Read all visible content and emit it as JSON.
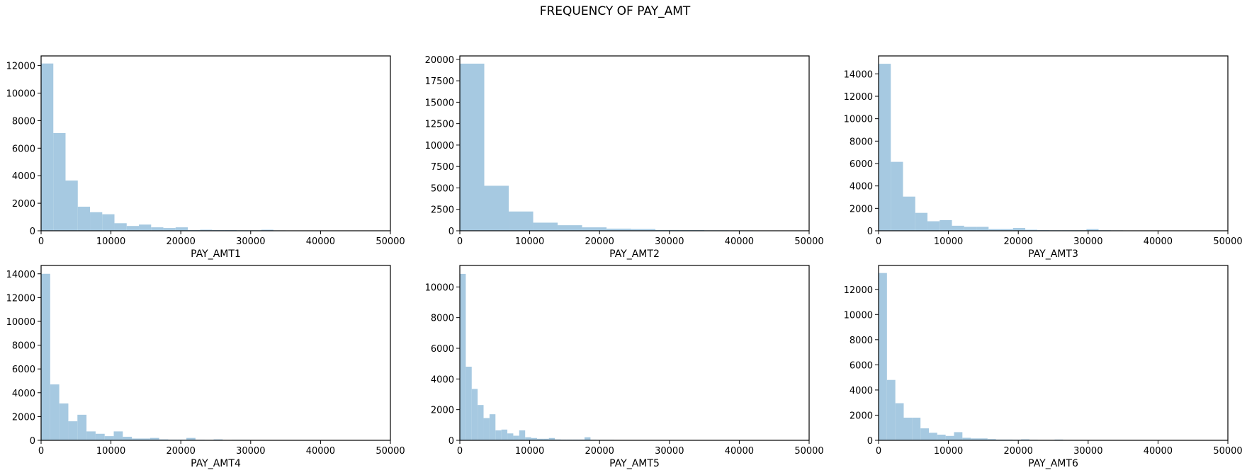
{
  "figure_title": "FREQUENCY OF PAY_AMT",
  "colors": {
    "bar": "#a6c9e1",
    "axis": "#000000",
    "background": "#ffffff"
  },
  "chart_data": [
    {
      "type": "bar",
      "title": "",
      "xlabel": "PAY_AMT1",
      "ylabel": "",
      "xlim": [
        0,
        50000
      ],
      "ylim": [
        0,
        12700
      ],
      "xticks": [
        0,
        10000,
        20000,
        30000,
        40000,
        50000
      ],
      "yticks": [
        0,
        2000,
        4000,
        6000,
        8000,
        10000,
        12000
      ],
      "bin_width": 1750,
      "values": [
        12150,
        7100,
        3650,
        1750,
        1350,
        1200,
        550,
        350,
        450,
        250,
        200,
        250,
        50,
        80,
        50,
        60,
        40,
        40,
        80,
        30,
        20,
        20,
        20,
        20,
        20,
        20,
        20,
        20,
        20
      ]
    },
    {
      "type": "bar",
      "title": "",
      "xlabel": "PAY_AMT2",
      "ylabel": "",
      "xlim": [
        0,
        50000
      ],
      "ylim": [
        0,
        20400
      ],
      "xticks": [
        0,
        10000,
        20000,
        30000,
        40000,
        50000
      ],
      "yticks": [
        0,
        2500,
        5000,
        7500,
        10000,
        12500,
        15000,
        17500,
        20000
      ],
      "bin_width": 3500,
      "values": [
        19500,
        5250,
        2250,
        950,
        650,
        400,
        250,
        200,
        100,
        80,
        60,
        50,
        40,
        40
      ]
    },
    {
      "type": "bar",
      "title": "",
      "xlabel": "PAY_AMT3",
      "ylabel": "",
      "xlim": [
        0,
        50000
      ],
      "ylim": [
        0,
        15600
      ],
      "xticks": [
        0,
        10000,
        20000,
        30000,
        40000,
        50000
      ],
      "yticks": [
        0,
        2000,
        4000,
        6000,
        8000,
        10000,
        12000,
        14000
      ],
      "bin_width": 1750,
      "values": [
        14900,
        6150,
        3050,
        1600,
        850,
        950,
        450,
        350,
        350,
        150,
        150,
        250,
        100,
        60,
        50,
        50,
        50,
        150,
        50,
        40,
        30,
        20,
        20,
        20,
        20,
        20,
        20,
        20,
        20
      ]
    },
    {
      "type": "bar",
      "title": "",
      "xlabel": "PAY_AMT4",
      "ylabel": "",
      "xlim": [
        0,
        50000
      ],
      "ylim": [
        0,
        14700
      ],
      "xticks": [
        0,
        10000,
        20000,
        30000,
        40000,
        50000
      ],
      "yticks": [
        0,
        2000,
        4000,
        6000,
        8000,
        10000,
        12000,
        14000
      ],
      "bin_width": 1300,
      "values": [
        14000,
        4700,
        3100,
        1600,
        2150,
        750,
        550,
        350,
        750,
        300,
        150,
        150,
        200,
        80,
        60,
        60,
        200,
        50,
        40,
        80,
        30,
        40,
        40,
        20,
        20,
        20,
        20,
        20,
        20,
        20,
        20,
        20,
        20,
        20,
        20,
        20,
        20
      ]
    },
    {
      "type": "bar",
      "title": "",
      "xlabel": "PAY_AMT5",
      "ylabel": "",
      "xlim": [
        0,
        50000
      ],
      "ylim": [
        0,
        11400
      ],
      "xticks": [
        0,
        10000,
        20000,
        30000,
        40000,
        50000
      ],
      "yticks": [
        0,
        2000,
        4000,
        6000,
        8000,
        10000
      ],
      "bin_width": 850,
      "values": [
        10850,
        4800,
        3350,
        2300,
        1450,
        1700,
        650,
        700,
        450,
        300,
        650,
        200,
        150,
        100,
        100,
        150,
        60,
        50,
        50,
        50,
        50,
        200,
        40,
        30,
        30,
        30,
        20,
        20,
        20,
        20,
        20,
        20,
        20,
        20,
        20,
        20,
        20,
        20,
        20,
        20,
        20,
        20,
        20,
        20,
        20,
        20,
        20,
        20,
        20,
        20,
        20,
        20,
        20,
        20,
        20,
        20,
        20,
        20
      ]
    },
    {
      "type": "bar",
      "title": "",
      "xlabel": "PAY_AMT6",
      "ylabel": "",
      "xlim": [
        0,
        50000
      ],
      "ylim": [
        0,
        13900
      ],
      "xticks": [
        0,
        10000,
        20000,
        30000,
        40000,
        50000
      ],
      "yticks": [
        0,
        2000,
        4000,
        6000,
        8000,
        10000,
        12000
      ],
      "bin_width": 1200,
      "values": [
        13300,
        4800,
        2950,
        1800,
        1800,
        950,
        600,
        450,
        350,
        650,
        200,
        150,
        150,
        100,
        60,
        60,
        50,
        80,
        40,
        30,
        30,
        60,
        20,
        20,
        20,
        20,
        20,
        20,
        20,
        20,
        20,
        20,
        20,
        20,
        20,
        20,
        20,
        20,
        20,
        20,
        20
      ]
    }
  ]
}
